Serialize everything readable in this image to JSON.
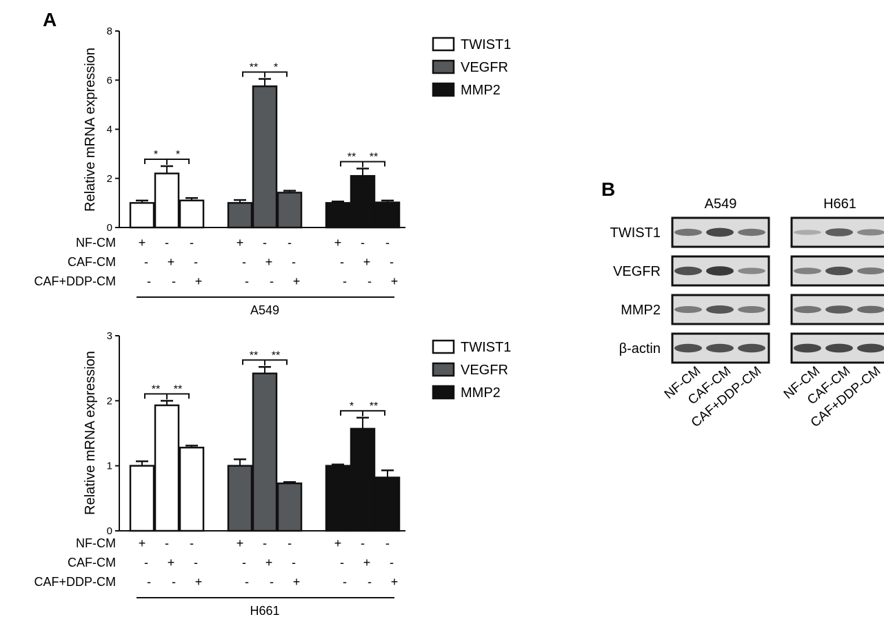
{
  "panel_labels": {
    "a": "A",
    "b": "B"
  },
  "colors": {
    "TWIST1": "#ffffff",
    "VEGFR": "#55595c",
    "MMP2": "#111111",
    "stroke": "#111111",
    "blot_bg": "#dcdcdc",
    "band": "#2a2a2a"
  },
  "chart_data": [
    {
      "type": "bar",
      "ylabel": "Relative mRNA expression",
      "ylim": [
        0,
        8
      ],
      "yticks": [
        "0",
        "2",
        "4",
        "6",
        "8"
      ],
      "groups": [
        "TWIST1",
        "VEGFR",
        "MMP2"
      ],
      "conditions": [
        "NF-CM",
        "CAF-CM",
        "CAF+DDP-CM"
      ],
      "series": [
        {
          "name": "TWIST1",
          "values": [
            1.0,
            2.2,
            1.1
          ],
          "errors": [
            0.1,
            0.3,
            0.1
          ]
        },
        {
          "name": "VEGFR",
          "values": [
            1.0,
            5.75,
            1.42
          ],
          "errors": [
            0.12,
            0.3,
            0.08
          ]
        },
        {
          "name": "MMP2",
          "values": [
            1.0,
            2.1,
            1.02
          ],
          "errors": [
            0.06,
            0.3,
            0.08
          ]
        }
      ],
      "treatment_matrix": {
        "NF-CM": [
          "+",
          "-",
          "-",
          "+",
          "-",
          "-",
          "+",
          "-",
          "-"
        ],
        "CAF-CM": [
          "-",
          "+",
          "-",
          "-",
          "+",
          "-",
          "-",
          "+",
          "-"
        ],
        "CAF+DDP-CM": [
          "-",
          "-",
          "+",
          "-",
          "-",
          "+",
          "-",
          "-",
          "+"
        ]
      },
      "significance": [
        [
          "*",
          "*"
        ],
        [
          "**",
          "*"
        ],
        [
          "**",
          "**"
        ]
      ],
      "cell_line": "A549",
      "legend": [
        "TWIST1",
        "VEGFR",
        "MMP2"
      ]
    },
    {
      "type": "bar",
      "ylabel": "Relative mRNA expression",
      "ylim": [
        0,
        3
      ],
      "yticks": [
        "0",
        "1",
        "2",
        "3"
      ],
      "groups": [
        "TWIST1",
        "VEGFR",
        "MMP2"
      ],
      "conditions": [
        "NF-CM",
        "CAF-CM",
        "CAF+DDP-CM"
      ],
      "series": [
        {
          "name": "TWIST1",
          "values": [
            1.0,
            1.93,
            1.28
          ],
          "errors": [
            0.07,
            0.07,
            0.03
          ]
        },
        {
          "name": "VEGFR",
          "values": [
            1.0,
            2.42,
            0.73
          ],
          "errors": [
            0.1,
            0.1,
            0.02
          ]
        },
        {
          "name": "MMP2",
          "values": [
            1.0,
            1.57,
            0.82
          ],
          "errors": [
            0.02,
            0.17,
            0.11
          ]
        }
      ],
      "treatment_matrix": {
        "NF-CM": [
          "+",
          "-",
          "-",
          "+",
          "-",
          "-",
          "+",
          "-",
          "-"
        ],
        "CAF-CM": [
          "-",
          "+",
          "-",
          "-",
          "+",
          "-",
          "-",
          "+",
          "-"
        ],
        "CAF+DDP-CM": [
          "-",
          "-",
          "+",
          "-",
          "-",
          "+",
          "-",
          "-",
          "+"
        ]
      },
      "significance": [
        [
          "**",
          "**"
        ],
        [
          "**",
          "**"
        ],
        [
          "*",
          "**"
        ]
      ],
      "cell_line": "H661",
      "legend": [
        "TWIST1",
        "VEGFR",
        "MMP2"
      ]
    }
  ],
  "western_blot": {
    "cell_lines": [
      "A549",
      "H661"
    ],
    "proteins": [
      "TWIST1",
      "VEGFR",
      "MMP2",
      "β-actin"
    ],
    "lanes": [
      "NF-CM",
      "CAF-CM",
      "CAF+DDP-CM"
    ],
    "intensity": {
      "A549": [
        [
          0.55,
          0.85,
          0.55
        ],
        [
          0.8,
          0.95,
          0.4
        ],
        [
          0.5,
          0.75,
          0.5
        ],
        [
          0.8,
          0.8,
          0.8
        ]
      ],
      "H661": [
        [
          0.15,
          0.7,
          0.4
        ],
        [
          0.45,
          0.8,
          0.5
        ],
        [
          0.55,
          0.7,
          0.6
        ],
        [
          0.85,
          0.85,
          0.85
        ]
      ]
    }
  }
}
